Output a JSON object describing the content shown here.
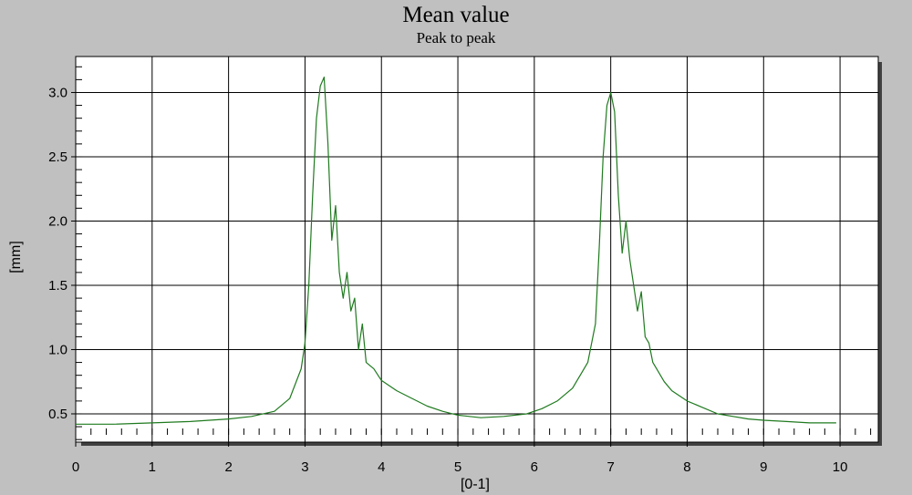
{
  "chart_data": {
    "type": "line",
    "title": "Mean value",
    "subtitle": "Peak to peak",
    "xlabel": "[0-1]",
    "ylabel": "[mm]",
    "xlim": [
      0,
      10.5
    ],
    "ylim": [
      0.28,
      3.28
    ],
    "x_ticks": [
      0,
      1,
      2,
      3,
      4,
      5,
      6,
      7,
      8,
      9,
      10
    ],
    "x_tick_labels": [
      "0",
      "1",
      "2",
      "3",
      "4",
      "5",
      "6",
      "7",
      "8",
      "9",
      "10"
    ],
    "y_ticks": [
      0.5,
      1.0,
      1.5,
      2.0,
      2.5,
      3.0
    ],
    "y_tick_labels": [
      "0.5",
      "1.0",
      "1.5",
      "2.0",
      "2.5",
      "3.0"
    ],
    "grid": true,
    "colors": {
      "line": "#1f7a1f",
      "plot_bg": "#ffffff",
      "page_bg": "#c0c0c0"
    },
    "series": [
      {
        "x": [
          0.0,
          0.5,
          1.0,
          1.5,
          2.0,
          2.3,
          2.6,
          2.8,
          2.95,
          3.0,
          3.05,
          3.1,
          3.15,
          3.2,
          3.25,
          3.3,
          3.35,
          3.4,
          3.45,
          3.5,
          3.55,
          3.6,
          3.65,
          3.7,
          3.75,
          3.8,
          3.9,
          4.0,
          4.2,
          4.4,
          4.6,
          4.8,
          5.0,
          5.3,
          5.6,
          5.9,
          6.1,
          6.3,
          6.5,
          6.7,
          6.8,
          6.85,
          6.9,
          6.95,
          7.0,
          7.05,
          7.1,
          7.15,
          7.2,
          7.25,
          7.3,
          7.35,
          7.4,
          7.45,
          7.5,
          7.55,
          7.6,
          7.7,
          7.8,
          8.0,
          8.2,
          8.4,
          8.6,
          8.8,
          9.0,
          9.3,
          9.6,
          9.95
        ],
        "y": [
          0.42,
          0.42,
          0.43,
          0.44,
          0.46,
          0.48,
          0.52,
          0.62,
          0.85,
          1.05,
          1.5,
          2.2,
          2.8,
          3.05,
          3.12,
          2.6,
          1.85,
          2.12,
          1.6,
          1.4,
          1.6,
          1.3,
          1.4,
          1.0,
          1.2,
          0.9,
          0.85,
          0.76,
          0.68,
          0.62,
          0.56,
          0.52,
          0.49,
          0.47,
          0.48,
          0.5,
          0.54,
          0.6,
          0.7,
          0.9,
          1.2,
          1.8,
          2.5,
          2.9,
          3.0,
          2.85,
          2.2,
          1.75,
          2.0,
          1.7,
          1.5,
          1.3,
          1.45,
          1.1,
          1.05,
          0.9,
          0.85,
          0.75,
          0.68,
          0.6,
          0.55,
          0.5,
          0.48,
          0.46,
          0.45,
          0.44,
          0.43,
          0.43
        ]
      }
    ]
  }
}
